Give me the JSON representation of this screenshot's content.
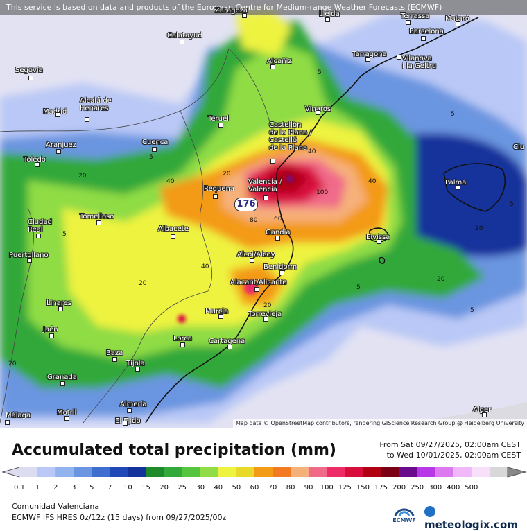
{
  "attribution_top": "This service is based on data and products of the European Centre for Medium-range Weather Forecasts (ECMWF)",
  "attribution_map": "Map data © OpenStreetMap contributors, rendering GIScience Research Group @ Heidelberg University",
  "title": "Accumulated total precipitation (mm)",
  "period": {
    "from": "From Sat 09/27/2025, 02:00am CEST",
    "to": "to Wed 10/01/2025, 02:00am CEST"
  },
  "region": "Comunidad Valenciana",
  "model": "ECMWF IFS HRES 0z/12z (15 days) from 09/27/2025/00z",
  "logos": {
    "ecmwf": "ECMWF",
    "meteologix": "meteologix.com"
  },
  "max_value": "176",
  "legend": {
    "ticks": [
      "0.1",
      "1",
      "2",
      "3",
      "5",
      "7",
      "10",
      "15",
      "20",
      "25",
      "30",
      "40",
      "50",
      "60",
      "70",
      "80",
      "90",
      "100",
      "125",
      "150",
      "175",
      "200",
      "250",
      "300",
      "400",
      "500"
    ],
    "colors": [
      "#dcdcf0",
      "#b9c8f6",
      "#93b4ee",
      "#6b95e0",
      "#3e6ed0",
      "#2148b6",
      "#13329b",
      "#1f8a2a",
      "#33a83b",
      "#55c43f",
      "#8fdc44",
      "#eef33f",
      "#e8d92a",
      "#f39a16",
      "#f47a20",
      "#f6b07a",
      "#f06a8a",
      "#ee2c68",
      "#d80f3c",
      "#b00012",
      "#7a0018",
      "#6a0c8c",
      "#b838e8",
      "#dc78f0",
      "#f0b8f8",
      "#f8e0fb",
      "#d8d8d8"
    ]
  },
  "contour_labels": [
    "20",
    "20",
    "40",
    "40",
    "40",
    "20",
    "20",
    "5",
    "5",
    "5",
    "5",
    "5",
    "5",
    "5",
    "20",
    "80",
    "100",
    "60",
    "20",
    "40",
    "20"
  ],
  "cities": [
    {
      "name": "Zaragoza"
    },
    {
      "name": "Lleida"
    },
    {
      "name": "Terrassa"
    },
    {
      "name": "Mataró"
    },
    {
      "name": "Barcelona"
    },
    {
      "name": "Calatayud"
    },
    {
      "name": "Tarragona"
    },
    {
      "name": "Vilanova\ni la Geltrú"
    },
    {
      "name": "Alcañiz"
    },
    {
      "name": "Segovia"
    },
    {
      "name": "Alcalá de\nHenares"
    },
    {
      "name": "Madrid"
    },
    {
      "name": "Teruel"
    },
    {
      "name": "Vinaròs"
    },
    {
      "name": "Castellón\nde la Plana /\nCastelló\nde la Plana"
    },
    {
      "name": "Aranjuez"
    },
    {
      "name": "Cuenca"
    },
    {
      "name": "Toledo"
    },
    {
      "name": "Valencia /\nValència"
    },
    {
      "name": "Requena"
    },
    {
      "name": "Palma"
    },
    {
      "name": "Ciudad\nReal"
    },
    {
      "name": "Tomelloso"
    },
    {
      "name": "Albacete"
    },
    {
      "name": "Gandia"
    },
    {
      "name": "Eivissa"
    },
    {
      "name": "Puertollano"
    },
    {
      "name": "Alcoi/Alcoy"
    },
    {
      "name": "Benidorm"
    },
    {
      "name": "Alacant/Alicante"
    },
    {
      "name": "Linares"
    },
    {
      "name": "Murcia"
    },
    {
      "name": "Torrevieja"
    },
    {
      "name": "Jaén"
    },
    {
      "name": "Lorca"
    },
    {
      "name": "Cartagena"
    },
    {
      "name": "Baza"
    },
    {
      "name": "Tíjola"
    },
    {
      "name": "Granada"
    },
    {
      "name": "Almería"
    },
    {
      "name": "Motril"
    },
    {
      "name": "El Ejido"
    },
    {
      "name": "Málaga"
    },
    {
      "name": "Alger"
    },
    {
      "name": "Ciu"
    }
  ]
}
